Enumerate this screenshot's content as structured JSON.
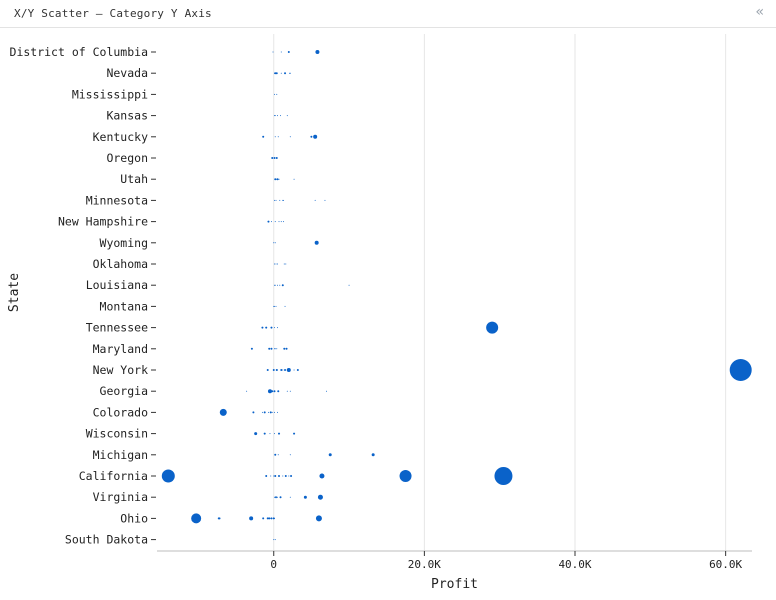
{
  "panel": {
    "title": "X/Y Scatter – Category Y Axis",
    "collapse_icon": "double-chevron-left-icon"
  },
  "chart_data": {
    "type": "scatter",
    "title": "X/Y Scatter – Category Y Axis",
    "xlabel": "Profit",
    "ylabel": "State",
    "xlim": [
      -15500,
      63500
    ],
    "x_ticks": [
      0,
      20000,
      40000,
      60000
    ],
    "x_tick_labels": [
      "0",
      "20.0K",
      "40.0K",
      "60.0K"
    ],
    "categories": [
      "District of Columbia",
      "Nevada",
      "Mississippi",
      "Kansas",
      "Kentucky",
      "Oregon",
      "Utah",
      "Minnesota",
      "New Hampshire",
      "Wyoming",
      "Oklahoma",
      "Louisiana",
      "Montana",
      "Tennessee",
      "Maryland",
      "New York",
      "Georgia",
      "Colorado",
      "Wisconsin",
      "Michigan",
      "California",
      "Virginia",
      "Ohio",
      "South Dakota"
    ],
    "grid": "vertical",
    "color": "#0a62c9",
    "size_encoding": "marker area varies by point",
    "points": [
      {
        "y": "District of Columbia",
        "x": -100,
        "s": 0.5
      },
      {
        "y": "District of Columbia",
        "x": 1000,
        "s": 0.5
      },
      {
        "y": "District of Columbia",
        "x": 2000,
        "s": 1
      },
      {
        "y": "District of Columbia",
        "x": 5800,
        "s": 2
      },
      {
        "y": "Nevada",
        "x": 200,
        "s": 1
      },
      {
        "y": "Nevada",
        "x": 400,
        "s": 1
      },
      {
        "y": "Nevada",
        "x": 1500,
        "s": 1
      },
      {
        "y": "Nevada",
        "x": 2200,
        "s": 0.5
      },
      {
        "y": "Nevada",
        "x": 100,
        "s": 0.5
      },
      {
        "y": "Nevada",
        "x": 1000,
        "s": 0.5
      },
      {
        "y": "Nevada",
        "x": 2100,
        "s": 0.5
      },
      {
        "y": "Mississippi",
        "x": 100,
        "s": 0.5
      },
      {
        "y": "Mississippi",
        "x": 400,
        "s": 0.5
      },
      {
        "y": "Kansas",
        "x": 100,
        "s": 0.5
      },
      {
        "y": "Kansas",
        "x": 900,
        "s": 0.5
      },
      {
        "y": "Kansas",
        "x": 200,
        "s": 0.5
      },
      {
        "y": "Kansas",
        "x": 500,
        "s": 0.5
      },
      {
        "y": "Kansas",
        "x": 1800,
        "s": 0.5
      },
      {
        "y": "Kentucky",
        "x": -1400,
        "s": 1
      },
      {
        "y": "Kentucky",
        "x": 200,
        "s": 0.5
      },
      {
        "y": "Kentucky",
        "x": 600,
        "s": 0.5
      },
      {
        "y": "Kentucky",
        "x": 2200,
        "s": 0.5
      },
      {
        "y": "Kentucky",
        "x": 5000,
        "s": 1
      },
      {
        "y": "Kentucky",
        "x": 5500,
        "s": 2
      },
      {
        "y": "Oregon",
        "x": -200,
        "s": 1
      },
      {
        "y": "Oregon",
        "x": 100,
        "s": 1
      },
      {
        "y": "Oregon",
        "x": 400,
        "s": 1
      },
      {
        "y": "Utah",
        "x": 200,
        "s": 1
      },
      {
        "y": "Utah",
        "x": 500,
        "s": 1
      },
      {
        "y": "Utah",
        "x": 2700,
        "s": 0.5
      },
      {
        "y": "Utah",
        "x": 300,
        "s": 0.5
      },
      {
        "y": "Utah",
        "x": 700,
        "s": 0.5
      },
      {
        "y": "Minnesota",
        "x": 100,
        "s": 0.5
      },
      {
        "y": "Minnesota",
        "x": 800,
        "s": 0.5
      },
      {
        "y": "Minnesota",
        "x": 1200,
        "s": 0.5
      },
      {
        "y": "Minnesota",
        "x": 5500,
        "s": 0.5
      },
      {
        "y": "Minnesota",
        "x": 300,
        "s": 0.5
      },
      {
        "y": "Minnesota",
        "x": 1300,
        "s": 0.5
      },
      {
        "y": "Minnesota",
        "x": 6800,
        "s": 0.5
      },
      {
        "y": "New Hampshire",
        "x": -300,
        "s": 0.5
      },
      {
        "y": "New Hampshire",
        "x": 200,
        "s": 0.5
      },
      {
        "y": "New Hampshire",
        "x": 700,
        "s": 0.5
      },
      {
        "y": "New Hampshire",
        "x": 1300,
        "s": 0.5
      },
      {
        "y": "New Hampshire",
        "x": -700,
        "s": 1
      },
      {
        "y": "New Hampshire",
        "x": 1000,
        "s": 0.5
      },
      {
        "y": "Wyoming",
        "x": 200,
        "s": 0.5
      },
      {
        "y": "Wyoming",
        "x": 5700,
        "s": 2
      },
      {
        "y": "Wyoming",
        "x": 0,
        "s": 0.5
      },
      {
        "y": "Oklahoma",
        "x": 100,
        "s": 0.5
      },
      {
        "y": "Oklahoma",
        "x": 500,
        "s": 0.5
      },
      {
        "y": "Oklahoma",
        "x": 1600,
        "s": 0.5
      },
      {
        "y": "Oklahoma",
        "x": 300,
        "s": 0.5
      },
      {
        "y": "Oklahoma",
        "x": 1400,
        "s": 0.5
      },
      {
        "y": "Louisiana",
        "x": 100,
        "s": 0.5
      },
      {
        "y": "Louisiana",
        "x": 500,
        "s": 0.5
      },
      {
        "y": "Louisiana",
        "x": 1200,
        "s": 1
      },
      {
        "y": "Louisiana",
        "x": 200,
        "s": 0.5
      },
      {
        "y": "Louisiana",
        "x": 800,
        "s": 0.5
      },
      {
        "y": "Louisiana",
        "x": 10000,
        "s": 0.5
      },
      {
        "y": "Montana",
        "x": 100,
        "s": 0.5
      },
      {
        "y": "Montana",
        "x": 300,
        "s": 0.5
      },
      {
        "y": "Montana",
        "x": 1500,
        "s": 0.5
      },
      {
        "y": "Montana",
        "x": 0,
        "s": 0.5
      },
      {
        "y": "Tennessee",
        "x": -1500,
        "s": 1
      },
      {
        "y": "Tennessee",
        "x": -1000,
        "s": 1
      },
      {
        "y": "Tennessee",
        "x": -300,
        "s": 1
      },
      {
        "y": "Tennessee",
        "x": 29000,
        "s": 6
      },
      {
        "y": "Tennessee",
        "x": 100,
        "s": 0.5
      },
      {
        "y": "Tennessee",
        "x": 500,
        "s": 0.5
      },
      {
        "y": "Maryland",
        "x": 100,
        "s": 0.5
      },
      {
        "y": "Maryland",
        "x": 400,
        "s": 0.5
      },
      {
        "y": "Maryland",
        "x": 1400,
        "s": 1
      },
      {
        "y": "Maryland",
        "x": 1700,
        "s": 1
      },
      {
        "y": "Maryland",
        "x": -2900,
        "s": 1
      },
      {
        "y": "Maryland",
        "x": -600,
        "s": 1
      },
      {
        "y": "Maryland",
        "x": -300,
        "s": 1
      },
      {
        "y": "Maryland",
        "x": 200,
        "s": 0.5
      },
      {
        "y": "New York",
        "x": -800,
        "s": 1
      },
      {
        "y": "New York",
        "x": 0,
        "s": 1
      },
      {
        "y": "New York",
        "x": 400,
        "s": 1
      },
      {
        "y": "New York",
        "x": 1000,
        "s": 1
      },
      {
        "y": "New York",
        "x": 1500,
        "s": 1
      },
      {
        "y": "New York",
        "x": 2000,
        "s": 2
      },
      {
        "y": "New York",
        "x": 2700,
        "s": 0.5
      },
      {
        "y": "New York",
        "x": 62000,
        "s": 11
      },
      {
        "y": "New York",
        "x": 0,
        "s": 0.5
      },
      {
        "y": "New York",
        "x": 500,
        "s": 0.5
      },
      {
        "y": "New York",
        "x": 1200,
        "s": 0.5
      },
      {
        "y": "New York",
        "x": 1800,
        "s": 0.5
      },
      {
        "y": "New York",
        "x": 3200,
        "s": 1
      },
      {
        "y": "Georgia",
        "x": 100,
        "s": 1
      },
      {
        "y": "Georgia",
        "x": 600,
        "s": 1
      },
      {
        "y": "Georgia",
        "x": 2200,
        "s": 0.5
      },
      {
        "y": "Georgia",
        "x": 7000,
        "s": 0.5
      },
      {
        "y": "Georgia",
        "x": -3600,
        "s": 0.5
      },
      {
        "y": "Georgia",
        "x": -500,
        "s": 2
      },
      {
        "y": "Georgia",
        "x": -200,
        "s": 1
      },
      {
        "y": "Georgia",
        "x": 1800,
        "s": 0.5
      },
      {
        "y": "Colorado",
        "x": -2700,
        "s": 1
      },
      {
        "y": "Colorado",
        "x": -1200,
        "s": 1
      },
      {
        "y": "Colorado",
        "x": -400,
        "s": 1
      },
      {
        "y": "Colorado",
        "x": 100,
        "s": 0.5
      },
      {
        "y": "Colorado",
        "x": -1500,
        "s": 0.5
      },
      {
        "y": "Colorado",
        "x": -700,
        "s": 0.5
      },
      {
        "y": "Colorado",
        "x": -6700,
        "s": 3.5
      },
      {
        "y": "Colorado",
        "x": -200,
        "s": 0.5
      },
      {
        "y": "Colorado",
        "x": 500,
        "s": 0.5
      },
      {
        "y": "Wisconsin",
        "x": 100,
        "s": 0.5
      },
      {
        "y": "Wisconsin",
        "x": 700,
        "s": 1
      },
      {
        "y": "Wisconsin",
        "x": 2700,
        "s": 1
      },
      {
        "y": "Wisconsin",
        "x": -2400,
        "s": 1.5
      },
      {
        "y": "Wisconsin",
        "x": -1200,
        "s": 1
      },
      {
        "y": "Wisconsin",
        "x": -500,
        "s": 0.5
      },
      {
        "y": "Michigan",
        "x": 200,
        "s": 1
      },
      {
        "y": "Michigan",
        "x": 600,
        "s": 0.5
      },
      {
        "y": "Michigan",
        "x": 7500,
        "s": 1.5
      },
      {
        "y": "Michigan",
        "x": 13200,
        "s": 1.5
      },
      {
        "y": "Michigan",
        "x": 2200,
        "s": 0.5
      },
      {
        "y": "California",
        "x": 200,
        "s": 1
      },
      {
        "y": "California",
        "x": 700,
        "s": 1
      },
      {
        "y": "California",
        "x": 1600,
        "s": 1
      },
      {
        "y": "California",
        "x": 2300,
        "s": 1
      },
      {
        "y": "California",
        "x": 6400,
        "s": 2.5
      },
      {
        "y": "California",
        "x": 17500,
        "s": 6
      },
      {
        "y": "California",
        "x": 30500,
        "s": 9
      },
      {
        "y": "California",
        "x": -14000,
        "s": 6.5
      },
      {
        "y": "California",
        "x": -1000,
        "s": 1
      },
      {
        "y": "California",
        "x": -400,
        "s": 0.5
      },
      {
        "y": "California",
        "x": 0,
        "s": 0.5
      },
      {
        "y": "California",
        "x": 1200,
        "s": 0.5
      },
      {
        "y": "California",
        "x": 2000,
        "s": 0.5
      },
      {
        "y": "Virginia",
        "x": 300,
        "s": 1
      },
      {
        "y": "Virginia",
        "x": 900,
        "s": 1
      },
      {
        "y": "Virginia",
        "x": 2200,
        "s": 0.5
      },
      {
        "y": "Virginia",
        "x": 4200,
        "s": 1.5
      },
      {
        "y": "Virginia",
        "x": 6200,
        "s": 2.5
      },
      {
        "y": "Virginia",
        "x": 100,
        "s": 0.5
      },
      {
        "y": "Virginia",
        "x": 500,
        "s": 0.5
      },
      {
        "y": "Ohio",
        "x": -7200,
        "s": 1
      },
      {
        "y": "Ohio",
        "x": -1400,
        "s": 1
      },
      {
        "y": "Ohio",
        "x": -600,
        "s": 1
      },
      {
        "y": "Ohio",
        "x": 0,
        "s": 1
      },
      {
        "y": "Ohio",
        "x": 6000,
        "s": 3
      },
      {
        "y": "Ohio",
        "x": -400,
        "s": 0.5
      },
      {
        "y": "Ohio",
        "x": 100,
        "s": 0.5
      },
      {
        "y": "Ohio",
        "x": -10300,
        "s": 5
      },
      {
        "y": "Ohio",
        "x": -7300,
        "s": 1
      },
      {
        "y": "Ohio",
        "x": -3000,
        "s": 2
      },
      {
        "y": "Ohio",
        "x": -800,
        "s": 1
      },
      {
        "y": "Ohio",
        "x": -300,
        "s": 1
      },
      {
        "y": "South Dakota",
        "x": 0,
        "s": 0.5
      },
      {
        "y": "South Dakota",
        "x": 200,
        "s": 0.5
      }
    ]
  }
}
